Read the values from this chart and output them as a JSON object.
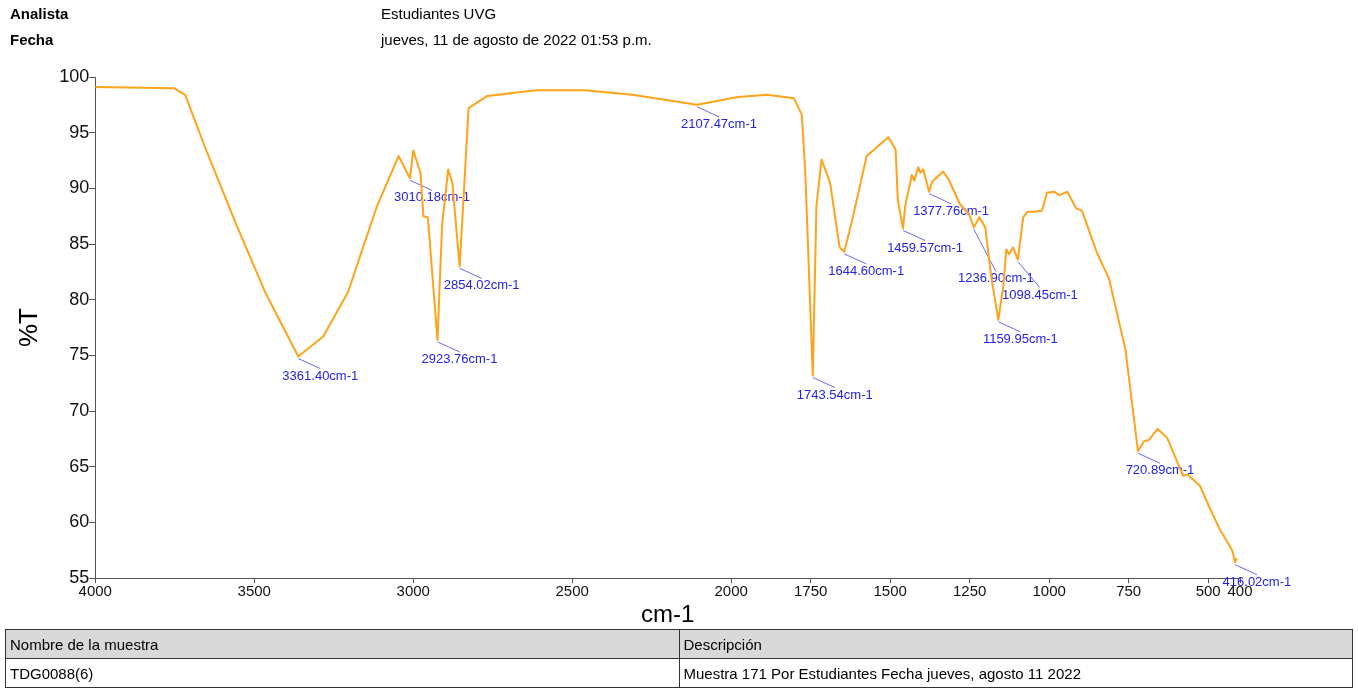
{
  "chart_data": {
    "type": "line",
    "xlabel": "cm-1",
    "ylabel": "%T",
    "color": "#ffa31a",
    "legend": false,
    "marker": "none",
    "xlim": [
      4000,
      400
    ],
    "xticks": [
      4000,
      3500,
      3000,
      2500,
      2000,
      1750,
      1500,
      1250,
      1000,
      750,
      500,
      400
    ],
    "ylim": [
      55,
      100
    ],
    "yticks": [
      55,
      60,
      65,
      70,
      75,
      80,
      85,
      90,
      95,
      100
    ],
    "x": [
      4000,
      3753,
      3717,
      3648,
      3557,
      3466,
      3361.4,
      3283,
      3205,
      3114,
      3046,
      3010.18,
      3000,
      2977,
      2968,
      2954,
      2923.76,
      2909,
      2890,
      2877,
      2854.02,
      2840,
      2826,
      2767,
      2612,
      2461,
      2311,
      2107.47,
      1979,
      1888,
      1803,
      1778,
      1767,
      1743.54,
      1732,
      1716,
      1689,
      1659,
      1644.6,
      1620,
      1574,
      1506,
      1483,
      1476,
      1459.57,
      1453,
      1432,
      1424,
      1412,
      1405,
      1396,
      1377.76,
      1368,
      1334,
      1316,
      1281,
      1252,
      1236.9,
      1220,
      1201,
      1183,
      1159.95,
      1144,
      1135,
      1126,
      1114,
      1098.45,
      1082,
      1068,
      1046,
      1023,
      1007,
      984,
      968,
      943,
      915,
      897,
      851,
      812,
      760,
      739,
      720.89,
      702,
      687,
      659,
      629,
      579,
      565,
      526,
      492,
      462,
      439,
      425,
      420,
      416.02,
      410
    ],
    "values": [
      99.1,
      99.0,
      98.4,
      93.2,
      86.8,
      80.7,
      74.9,
      76.7,
      80.7,
      88.4,
      92.9,
      90.9,
      93.4,
      91.4,
      87.5,
      87.4,
      76.4,
      86.8,
      91.7,
      90.5,
      83.0,
      90.0,
      97.2,
      98.3,
      98.8,
      98.8,
      98.4,
      97.5,
      98.2,
      98.4,
      98.1,
      96.6,
      91.4,
      73.2,
      88.4,
      92.6,
      90.5,
      84.7,
      84.3,
      87.1,
      92.9,
      94.6,
      93.5,
      88.9,
      86.4,
      88.4,
      91.2,
      90.7,
      91.9,
      91.4,
      91.7,
      89.7,
      90.6,
      91.5,
      90.8,
      88.6,
      87.7,
      86.5,
      87.4,
      86.5,
      82.2,
      78.2,
      81.3,
      84.5,
      84.1,
      84.7,
      83.6,
      87.4,
      87.9,
      87.9,
      88.0,
      89.6,
      89.7,
      89.4,
      89.7,
      88.2,
      88.0,
      84.3,
      81.9,
      75.5,
      70.6,
      66.4,
      67.3,
      67.4,
      68.4,
      67.6,
      64.2,
      64.3,
      63.3,
      61.1,
      59.3,
      58.2,
      57.5,
      57.0,
      56.4,
      56.8
    ],
    "annotations": [
      "Analista",
      "Estudiantes UVG",
      "Fecha",
      "jueves, 11 de agosto de 2022 01:53 p.m.",
      "Nombre de la muestra",
      "Descripción",
      "TDG0088(6)",
      "Muestra 171 Por Estudiantes Fecha jueves, agosto 11 2022",
      {
        "text": "3361.40cm-1",
        "x": 3361.4,
        "y": 74.9
      },
      {
        "text": "3010.18cm-1",
        "x": 3010.18,
        "y": 90.9
      },
      {
        "text": "2923.76cm-1",
        "x": 2923.76,
        "y": 76.4
      },
      {
        "text": "2854.02cm-1",
        "x": 2854.02,
        "y": 83.0
      },
      {
        "text": "2107.47cm-1",
        "x": 2107.47,
        "y": 97.5
      },
      {
        "text": "1743.54cm-1",
        "x": 1743.54,
        "y": 73.2
      },
      {
        "text": "1644.60cm-1",
        "x": 1644.6,
        "y": 84.3
      },
      {
        "text": "1459.57cm-1",
        "x": 1459.57,
        "y": 86.4
      },
      {
        "text": "1377.76cm-1",
        "x": 1377.76,
        "y": 89.7
      },
      {
        "text": "1236.90cm-1",
        "x": 1236.9,
        "y": 86.5
      },
      {
        "text": "1159.95cm-1",
        "x": 1159.95,
        "y": 78.2
      },
      {
        "text": "1098.45cm-1",
        "x": 1098.45,
        "y": 83.6
      },
      {
        "text": "720.89cm-1",
        "x": 720.89,
        "y": 66.4
      },
      {
        "text": "416.02cm-1",
        "x": 416.02,
        "y": 56.4
      }
    ]
  }
}
